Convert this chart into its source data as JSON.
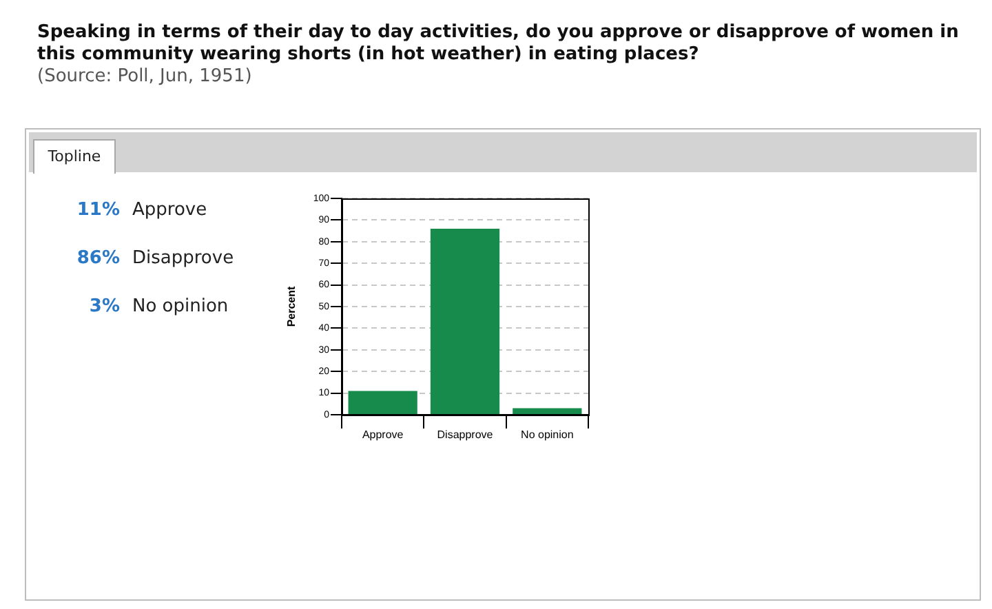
{
  "chart_data": [
    {
      "type": "other",
      "annotations": [
        "11%",
        "Approve",
        "86%",
        "Disapprove",
        "3%",
        "No opinion"
      ]
    },
    {
      "type": "bar",
      "title": "Speaking in terms of their day to day activities, do you approve or disapprove of women in this community wearing shorts (in hot weather) in eating places?",
      "annotations": [
        "(Source: Poll, Jun, 1951)",
        "Topline"
      ],
      "ylabel": "Percent",
      "categories": [
        "Approve",
        "Disapprove",
        "No opinion"
      ],
      "values": [
        11,
        86,
        3
      ],
      "color": "#178b4b",
      "ylim": [
        0,
        100
      ],
      "yticks": [
        0,
        10,
        20,
        30,
        40,
        50,
        60,
        70,
        80,
        90,
        100
      ],
      "grid": "y"
    }
  ]
}
